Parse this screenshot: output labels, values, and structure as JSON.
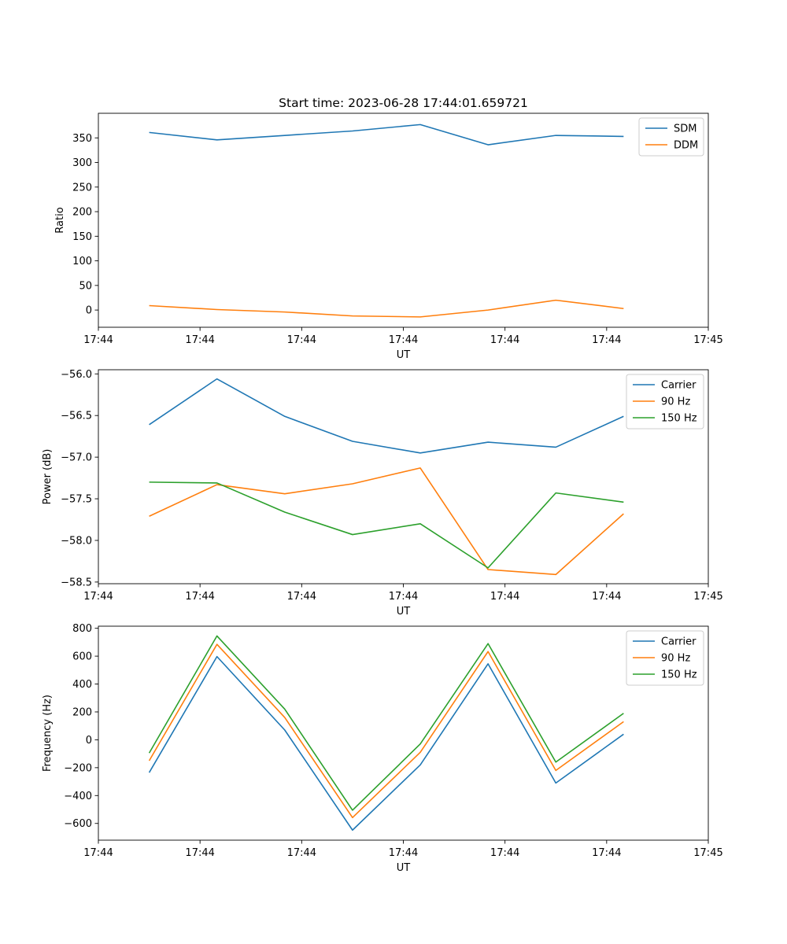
{
  "chart_data": [
    {
      "type": "line",
      "title": "Start time: 2023-06-28 17:44:01.659721",
      "xlabel": "UT",
      "ylabel": "Ratio",
      "x": [
        1,
        2,
        3,
        4,
        5,
        6,
        7,
        8
      ],
      "x_ticks": [
        0.25,
        1.75,
        3.25,
        4.75,
        6.25,
        7.75,
        9.25
      ],
      "x_tick_labels": [
        "17:44",
        "17:44",
        "17:44",
        "17:44",
        "17:44",
        "17:44",
        "17:45"
      ],
      "xlim": [
        0.25,
        9.25
      ],
      "ylim": [
        -35,
        400
      ],
      "y_ticks": [
        0,
        50,
        100,
        150,
        200,
        250,
        300,
        350
      ],
      "legend": "top-right",
      "grid": false,
      "series": [
        {
          "name": "SDM",
          "color": "#1f77b4",
          "values": [
            361,
            346,
            355,
            364,
            377,
            336,
            355,
            353
          ]
        },
        {
          "name": "DDM",
          "color": "#ff7f0e",
          "values": [
            9,
            1,
            -4,
            -12,
            -14,
            0,
            20,
            3
          ]
        }
      ]
    },
    {
      "type": "line",
      "title": "",
      "xlabel": "UT",
      "ylabel": "Power (dB)",
      "x": [
        1,
        2,
        3,
        4,
        5,
        6,
        7,
        8
      ],
      "x_ticks": [
        0.25,
        1.75,
        3.25,
        4.75,
        6.25,
        7.75,
        9.25
      ],
      "x_tick_labels": [
        "17:44",
        "17:44",
        "17:44",
        "17:44",
        "17:44",
        "17:44",
        "17:45"
      ],
      "xlim": [
        0.25,
        9.25
      ],
      "ylim": [
        -58.52,
        -55.95
      ],
      "y_ticks": [
        -58.5,
        -58.0,
        -57.5,
        -57.0,
        -56.5,
        -56.0
      ],
      "y_tick_labels": [
        "−58.5",
        "−58.0",
        "−57.5",
        "−57.0",
        "−56.5",
        "−56.0"
      ],
      "legend": "top-right",
      "grid": false,
      "series": [
        {
          "name": "Carrier",
          "color": "#1f77b4",
          "values": [
            -56.61,
            -56.06,
            -56.51,
            -56.81,
            -56.95,
            -56.82,
            -56.88,
            -56.51
          ]
        },
        {
          "name": "90 Hz",
          "color": "#ff7f0e",
          "values": [
            -57.71,
            -57.33,
            -57.44,
            -57.32,
            -57.13,
            -58.35,
            -58.41,
            -57.68
          ]
        },
        {
          "name": "150 Hz",
          "color": "#2ca02c",
          "values": [
            -57.3,
            -57.31,
            -57.66,
            -57.93,
            -57.8,
            -58.33,
            -57.43,
            -57.54
          ]
        }
      ]
    },
    {
      "type": "line",
      "title": "",
      "xlabel": "UT",
      "ylabel": "Frequency (Hz)",
      "x": [
        1,
        2,
        3,
        4,
        5,
        6,
        7,
        8
      ],
      "x_ticks": [
        0.25,
        1.75,
        3.25,
        4.75,
        6.25,
        7.75,
        9.25
      ],
      "x_tick_labels": [
        "17:44",
        "17:44",
        "17:44",
        "17:44",
        "17:44",
        "17:44",
        "17:45"
      ],
      "xlim": [
        0.25,
        9.25
      ],
      "ylim": [
        -720,
        815
      ],
      "y_ticks": [
        -600,
        -400,
        -200,
        0,
        200,
        400,
        600,
        800
      ],
      "y_tick_labels": [
        "−600",
        "−400",
        "−200",
        "0",
        "200",
        "400",
        "600",
        "800"
      ],
      "legend": "top-right",
      "grid": false,
      "series": [
        {
          "name": "Carrier",
          "color": "#1f77b4",
          "values": [
            -235,
            597,
            70,
            -648,
            -180,
            545,
            -310,
            40
          ]
        },
        {
          "name": "90 Hz",
          "color": "#ff7f0e",
          "values": [
            -150,
            685,
            160,
            -558,
            -90,
            633,
            -220,
            130
          ]
        },
        {
          "name": "150 Hz",
          "color": "#2ca02c",
          "values": [
            -95,
            745,
            220,
            -505,
            -30,
            690,
            -160,
            190
          ]
        }
      ]
    }
  ]
}
